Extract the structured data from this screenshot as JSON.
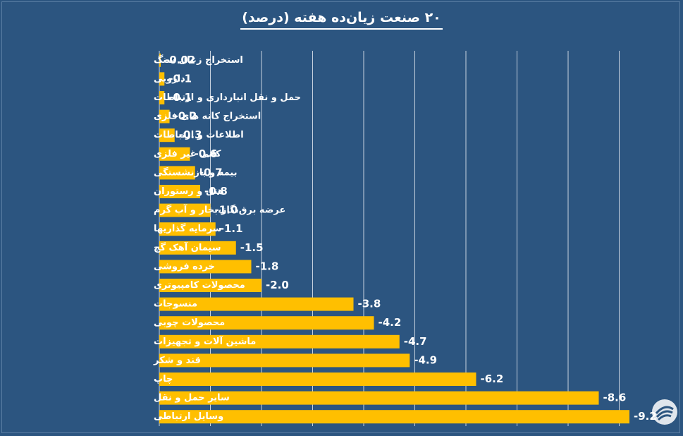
{
  "title": "۲۰ صنعت زیان‌ده هفته (درصد)",
  "colors": {
    "background": "#2c5580",
    "bar": "#ffbf00",
    "text": "#ffffff",
    "grid": "#d8e0ea"
  },
  "chart_data": {
    "type": "bar",
    "orientation": "horizontal",
    "title": "۲۰ صنعت زیان‌ده هفته (درصد)",
    "xlim": [
      0,
      9.2
    ],
    "grid": true,
    "categories": [
      "استخراج زغال سنگ",
      "دارویی",
      "حمل و نقل انبارداری و ارتباطات",
      "استخراج کانه های فلزی",
      "اطلاعات و ارتباطات",
      "کانی غیر فلزی",
      "بیمه و بازنشستگی",
      "هتل و رستوران",
      "عرضه برق،گاز،بخار و آب گرم",
      "سرمایه گذاریها",
      "سیمان آهک گچ",
      "خرده فروشی",
      "محصولات کامپیوتری",
      "منسوجات",
      "محصولات چوبی",
      "ماشین آلات و تجهیزات",
      "قند و شکر",
      "چاپ",
      "سایر حمل و نقل",
      "وسایل ارتباطی"
    ],
    "values": [
      -0.02,
      -0.1,
      -0.1,
      -0.2,
      -0.3,
      -0.6,
      -0.7,
      -0.8,
      -1.0,
      -1.1,
      -1.5,
      -1.8,
      -2.0,
      -3.8,
      -4.2,
      -4.7,
      -4.9,
      -6.2,
      -8.6,
      -9.2
    ],
    "value_labels": [
      "-0.02",
      "-0.1",
      "-0.1",
      "-0.2",
      "-0.3",
      "-0.6",
      "-0.7",
      "-0.8",
      "-1.0",
      "-1.1",
      "-1.5",
      "-1.8",
      "-2.0",
      "-3.8",
      "-4.2",
      "-4.7",
      "-4.9",
      "-6.2",
      "-8.6",
      "-9.2"
    ]
  },
  "logo": {
    "icon": "watermark-logo-icon"
  }
}
